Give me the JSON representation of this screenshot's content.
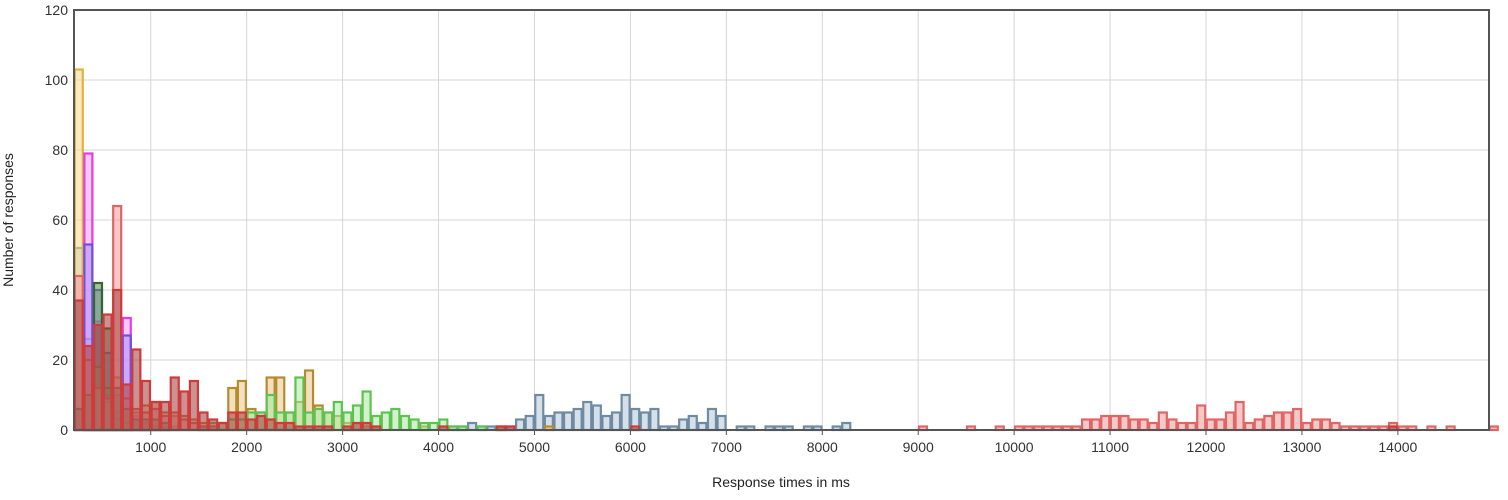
{
  "chart_data": {
    "type": "bar",
    "title": "",
    "xlabel": "Response times in ms",
    "ylabel": "Number of responses",
    "xlim": [
      200,
      14950
    ],
    "ylim": [
      0,
      120
    ],
    "bin_width": 100,
    "grid": true,
    "legend": "none",
    "x_ticks": [
      1000,
      2000,
      3000,
      4000,
      5000,
      6000,
      7000,
      8000,
      9000,
      10000,
      11000,
      12000,
      13000,
      14000
    ],
    "y_ticks": [
      0,
      20,
      40,
      60,
      80,
      100,
      120
    ],
    "series": [
      {
        "fill": "#b3c6d6",
        "stroke": "#6f8ba3",
        "points": [
          [
            200,
            52
          ],
          [
            300,
            26
          ],
          [
            400,
            7
          ],
          [
            500,
            2
          ],
          [
            600,
            3
          ],
          [
            700,
            1
          ],
          [
            1200,
            1
          ],
          [
            4100,
            1
          ],
          [
            4200,
            1
          ],
          [
            4300,
            2
          ],
          [
            4400,
            1
          ],
          [
            4500,
            1
          ],
          [
            4600,
            1
          ],
          [
            4700,
            1
          ],
          [
            4800,
            3
          ],
          [
            4900,
            4
          ],
          [
            5000,
            10
          ],
          [
            5100,
            4
          ],
          [
            5200,
            5
          ],
          [
            5300,
            5
          ],
          [
            5400,
            6
          ],
          [
            5500,
            8
          ],
          [
            5600,
            7
          ],
          [
            5700,
            4
          ],
          [
            5800,
            5
          ],
          [
            5900,
            10
          ],
          [
            6000,
            6
          ],
          [
            6100,
            5
          ],
          [
            6200,
            6
          ],
          [
            6300,
            1
          ],
          [
            6400,
            1
          ],
          [
            6500,
            3
          ],
          [
            6600,
            4
          ],
          [
            6700,
            2
          ],
          [
            6800,
            6
          ],
          [
            6900,
            4
          ],
          [
            7100,
            1
          ],
          [
            7200,
            1
          ],
          [
            7400,
            1
          ],
          [
            7500,
            1
          ],
          [
            7600,
            1
          ],
          [
            7800,
            1
          ],
          [
            7900,
            1
          ],
          [
            8100,
            1
          ],
          [
            8200,
            2
          ]
        ]
      },
      {
        "fill": "#f7d98a",
        "stroke": "#e0b33a",
        "points": [
          [
            200,
            103
          ],
          [
            300,
            20
          ],
          [
            400,
            8
          ],
          [
            500,
            5
          ],
          [
            600,
            3
          ],
          [
            700,
            2
          ],
          [
            800,
            1
          ],
          [
            900,
            1
          ],
          [
            1000,
            1
          ],
          [
            1100,
            1
          ],
          [
            1500,
            1
          ]
        ]
      },
      {
        "fill": "#f59bf7",
        "stroke": "#df3ee4",
        "points": [
          [
            300,
            79
          ],
          [
            400,
            31
          ],
          [
            500,
            10
          ],
          [
            600,
            5
          ],
          [
            700,
            32
          ],
          [
            800,
            4
          ],
          [
            900,
            2
          ],
          [
            1000,
            1
          ],
          [
            1100,
            1
          ]
        ]
      },
      {
        "fill": "#a98cf2",
        "stroke": "#6f4fe0",
        "points": [
          [
            300,
            53
          ],
          [
            400,
            40
          ],
          [
            500,
            22
          ],
          [
            600,
            10
          ],
          [
            700,
            27
          ],
          [
            800,
            3
          ],
          [
            900,
            2
          ]
        ]
      },
      {
        "fill": "#e8c98e",
        "stroke": "#b88a2f",
        "points": [
          [
            300,
            10
          ],
          [
            400,
            18
          ],
          [
            500,
            12
          ],
          [
            600,
            15
          ],
          [
            700,
            6
          ],
          [
            800,
            5
          ],
          [
            900,
            7
          ],
          [
            1000,
            8
          ],
          [
            1100,
            5
          ],
          [
            1200,
            4
          ],
          [
            1300,
            4
          ],
          [
            1400,
            3
          ],
          [
            1500,
            2
          ],
          [
            1600,
            1
          ],
          [
            1700,
            2
          ],
          [
            1800,
            12
          ],
          [
            1900,
            14
          ],
          [
            2000,
            6
          ],
          [
            2100,
            5
          ],
          [
            2200,
            15
          ],
          [
            2300,
            15
          ],
          [
            2400,
            5
          ],
          [
            2500,
            8
          ],
          [
            2600,
            17
          ],
          [
            2700,
            7
          ],
          [
            2800,
            5
          ],
          [
            2900,
            4
          ],
          [
            3000,
            2
          ],
          [
            3100,
            2
          ],
          [
            3200,
            1
          ],
          [
            3300,
            1
          ],
          [
            3800,
            1
          ],
          [
            4600,
            1
          ],
          [
            5100,
            1
          ]
        ]
      },
      {
        "fill": "#aee6a2",
        "stroke": "#5cc44e",
        "points": [
          [
            400,
            12
          ],
          [
            500,
            8
          ],
          [
            600,
            3
          ],
          [
            700,
            2
          ],
          [
            1500,
            1
          ],
          [
            1600,
            2
          ],
          [
            1700,
            2
          ],
          [
            1800,
            3
          ],
          [
            1900,
            3
          ],
          [
            2000,
            5
          ],
          [
            2100,
            5
          ],
          [
            2200,
            10
          ],
          [
            2300,
            5
          ],
          [
            2400,
            5
          ],
          [
            2500,
            15
          ],
          [
            2600,
            5
          ],
          [
            2700,
            6
          ],
          [
            2800,
            5
          ],
          [
            2900,
            8
          ],
          [
            3000,
            5
          ],
          [
            3100,
            7
          ],
          [
            3200,
            11
          ],
          [
            3300,
            4
          ],
          [
            3400,
            5
          ],
          [
            3500,
            6
          ],
          [
            3600,
            4
          ],
          [
            3700,
            3
          ],
          [
            3800,
            2
          ],
          [
            3900,
            2
          ],
          [
            4000,
            3
          ],
          [
            4100,
            1
          ],
          [
            4200,
            1
          ],
          [
            4400,
            1
          ]
        ]
      },
      {
        "fill": "#5a8f54",
        "stroke": "#2f6a2a",
        "points": [
          [
            200,
            6
          ],
          [
            300,
            10
          ],
          [
            400,
            42
          ],
          [
            500,
            29
          ],
          [
            600,
            12
          ],
          [
            700,
            6
          ],
          [
            800,
            3
          ],
          [
            900,
            3
          ],
          [
            1000,
            3
          ],
          [
            1100,
            2
          ]
        ]
      },
      {
        "fill": "#f09a9a",
        "stroke": "#e06666",
        "points": [
          [
            200,
            44
          ],
          [
            300,
            20
          ],
          [
            400,
            12
          ],
          [
            500,
            9
          ],
          [
            600,
            64
          ],
          [
            700,
            9
          ],
          [
            800,
            6
          ],
          [
            900,
            5
          ],
          [
            1000,
            6
          ],
          [
            1100,
            4
          ],
          [
            1200,
            5
          ],
          [
            1300,
            3
          ],
          [
            1400,
            2
          ],
          [
            1500,
            1
          ],
          [
            1600,
            1
          ],
          [
            9000,
            1
          ],
          [
            9500,
            1
          ],
          [
            9800,
            1
          ],
          [
            10000,
            1
          ],
          [
            10100,
            1
          ],
          [
            10200,
            1
          ],
          [
            10300,
            1
          ],
          [
            10400,
            1
          ],
          [
            10500,
            1
          ],
          [
            10600,
            1
          ],
          [
            10700,
            3
          ],
          [
            10800,
            3
          ],
          [
            10900,
            4
          ],
          [
            11000,
            4
          ],
          [
            11100,
            4
          ],
          [
            11200,
            3
          ],
          [
            11300,
            3
          ],
          [
            11400,
            2
          ],
          [
            11500,
            5
          ],
          [
            11600,
            3
          ],
          [
            11700,
            2
          ],
          [
            11800,
            2
          ],
          [
            11900,
            7
          ],
          [
            12000,
            3
          ],
          [
            12100,
            3
          ],
          [
            12200,
            5
          ],
          [
            12300,
            8
          ],
          [
            12400,
            2
          ],
          [
            12500,
            3
          ],
          [
            12600,
            4
          ],
          [
            12700,
            5
          ],
          [
            12800,
            5
          ],
          [
            12900,
            6
          ],
          [
            13000,
            2
          ],
          [
            13100,
            3
          ],
          [
            13200,
            3
          ],
          [
            13300,
            2
          ],
          [
            13400,
            1
          ],
          [
            13500,
            1
          ],
          [
            13600,
            1
          ],
          [
            13700,
            1
          ],
          [
            13800,
            1
          ],
          [
            13900,
            2
          ],
          [
            14000,
            1
          ],
          [
            14100,
            1
          ],
          [
            14300,
            1
          ],
          [
            14500,
            1
          ],
          [
            14950,
            1
          ]
        ]
      },
      {
        "fill": "#9e3a3a",
        "stroke": "#d13a3a",
        "points": [
          [
            200,
            37
          ],
          [
            300,
            24
          ],
          [
            400,
            30
          ],
          [
            500,
            33
          ],
          [
            600,
            40
          ],
          [
            700,
            13
          ],
          [
            800,
            23
          ],
          [
            900,
            14
          ],
          [
            1000,
            8
          ],
          [
            1100,
            8
          ],
          [
            1200,
            15
          ],
          [
            1300,
            11
          ],
          [
            1400,
            14
          ],
          [
            1500,
            5
          ],
          [
            1600,
            3
          ],
          [
            1700,
            2
          ],
          [
            1800,
            5
          ],
          [
            1900,
            5
          ],
          [
            2000,
            3
          ],
          [
            2100,
            4
          ],
          [
            2200,
            3
          ],
          [
            2300,
            2
          ],
          [
            2400,
            2
          ],
          [
            2500,
            1
          ],
          [
            2600,
            1
          ],
          [
            2700,
            1
          ],
          [
            2800,
            1
          ],
          [
            3000,
            1
          ],
          [
            3100,
            2
          ],
          [
            3200,
            2
          ],
          [
            3300,
            1
          ],
          [
            4000,
            1
          ],
          [
            4600,
            1
          ],
          [
            4700,
            1
          ],
          [
            6000,
            1
          ],
          [
            13900,
            1
          ]
        ]
      }
    ]
  }
}
